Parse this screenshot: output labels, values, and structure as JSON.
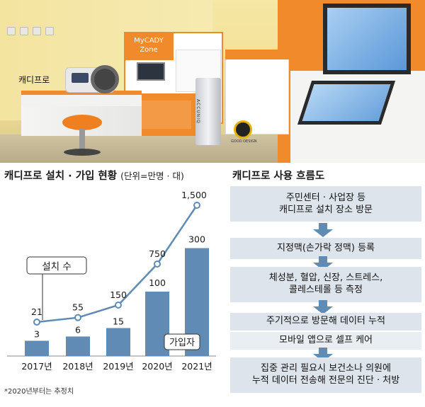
{
  "photo": {
    "label": "캐디프로",
    "booth_sign": "MyCADY\nZone",
    "scale_brand": "ACCUNIQ",
    "logo_text": "GOOD DESIGN"
  },
  "chart": {
    "title": "캐디프로 설치 · 가입 현황",
    "unit": "(단위=만명 · 대)",
    "note": "*2020년부터는 추정치",
    "colors": {
      "line": "#5f8bb5",
      "bar": "#5f8bb5"
    }
  },
  "chart_data": {
    "type": "bar+line",
    "categories": [
      "2017년",
      "2018년",
      "2019년",
      "2020년",
      "2021년"
    ],
    "series": [
      {
        "name": "설치 수",
        "type": "line",
        "values": [
          21,
          55,
          150,
          750,
          1500
        ],
        "labels": [
          "21",
          "55",
          "150",
          "750",
          "1,500"
        ]
      },
      {
        "name": "가입자",
        "type": "bar",
        "values": [
          3,
          6,
          15,
          100,
          300
        ],
        "labels": [
          "3",
          "6",
          "15",
          "100",
          "300"
        ]
      }
    ]
  },
  "flow": {
    "title": "캐디프로 사용 흐름도",
    "steps": [
      {
        "line1": "주민센터 · 사업장 등",
        "line2": "캐디프로 설치 장소 방문"
      },
      {
        "line1": "지정맥(손가락 정맥) 등록",
        "line2": ""
      },
      {
        "line1": "체성분, 혈압, 신장, 스트레스,",
        "line2": "콜레스테롤 등 측정"
      },
      {
        "line1": "주기적으로 방문해 데이터 누적",
        "line2": ""
      },
      {
        "line1": "모바일 앱으로 셀프 케어",
        "line2": ""
      },
      {
        "line1": "집중 관리 필요시 보건소나 의원에",
        "line2": "누적 데이터 전송해 전문의 진단 · 처방"
      }
    ]
  }
}
